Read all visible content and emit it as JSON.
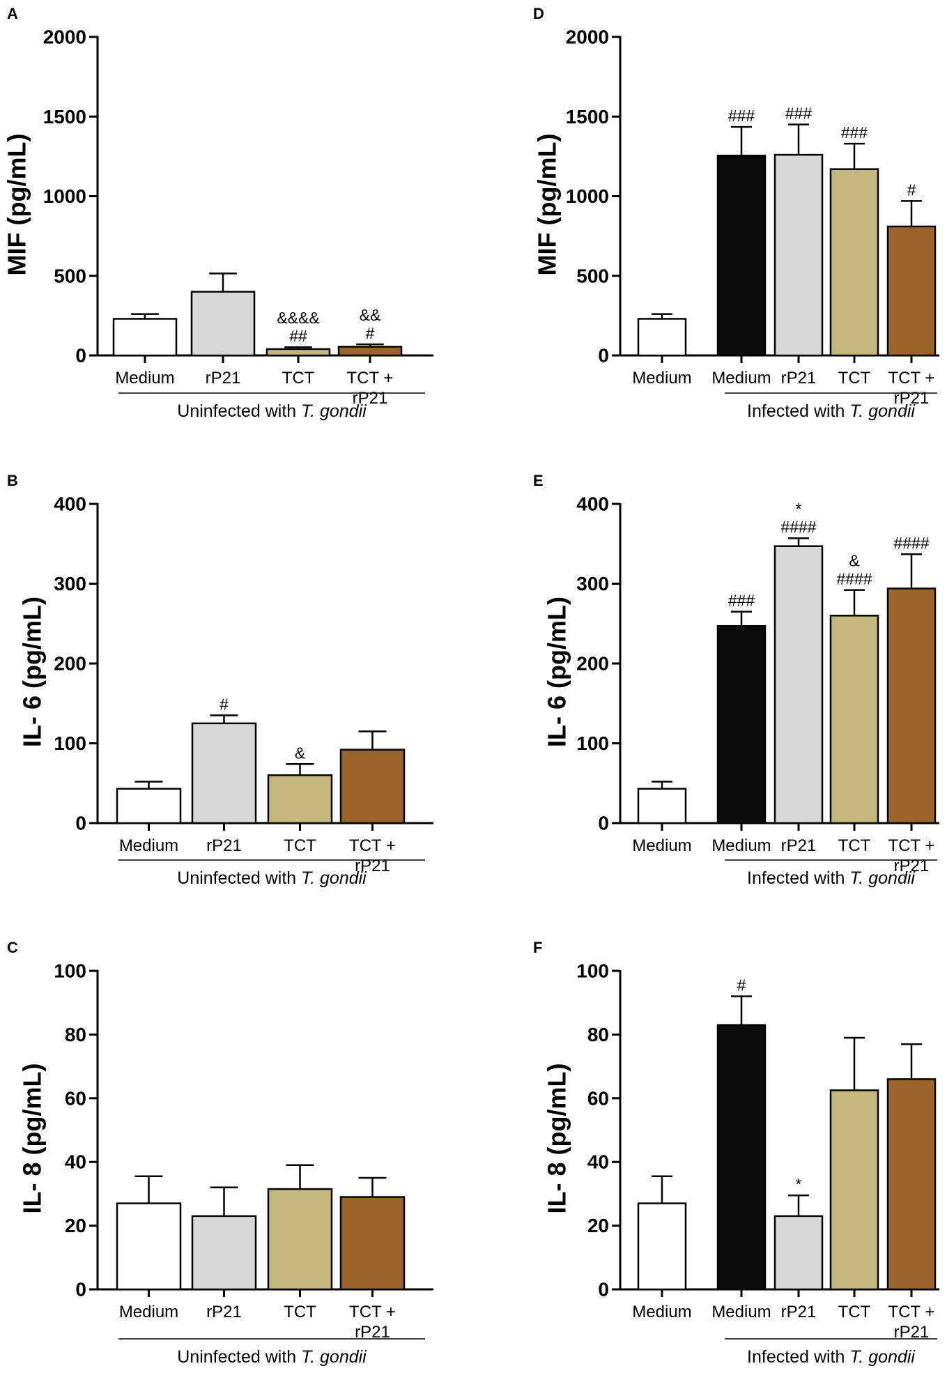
{
  "colors": {
    "white": "#ffffff",
    "grey": "#d7d8d7",
    "tan": "#c4b67f",
    "brown": "#98642c",
    "black": "#0a0a0a",
    "stroke": "#000000"
  },
  "chart_data": [
    {
      "panel": "A",
      "type": "bar",
      "ylabel": "MIF (pg/mL)",
      "ylim": [
        0,
        2000
      ],
      "yticks": [
        0,
        500,
        1000,
        1500,
        2000
      ],
      "group_label": "Uninfected with ",
      "group_label_italic": "T. gondii",
      "bars": [
        {
          "category": "Medium",
          "value": 230,
          "err": 30,
          "color": "white",
          "sig": []
        },
        {
          "category": "rP21",
          "value": 400,
          "err": 115,
          "color": "grey",
          "sig": []
        },
        {
          "category": "TCT",
          "value": 40,
          "err": 12,
          "color": "tan",
          "sig": [
            "&&&&",
            "##"
          ]
        },
        {
          "category": "TCT +",
          "category2": "rP21",
          "value": 55,
          "err": 15,
          "color": "brown",
          "sig": [
            "&&",
            "#"
          ]
        }
      ]
    },
    {
      "panel": "B",
      "type": "bar",
      "ylabel": "IL- 6 (pg/mL)",
      "ylim": [
        0,
        400
      ],
      "yticks": [
        0,
        100,
        200,
        300,
        400
      ],
      "group_label": "Uninfected with ",
      "group_label_italic": "T. gondii",
      "bars": [
        {
          "category": "Medium",
          "value": 43,
          "err": 9,
          "color": "white",
          "sig": []
        },
        {
          "category": "rP21",
          "value": 125,
          "err": 10,
          "color": "grey",
          "sig": [
            "#"
          ]
        },
        {
          "category": "TCT",
          "value": 60,
          "err": 14,
          "color": "tan",
          "sig": [
            "&"
          ]
        },
        {
          "category": "TCT +",
          "category2": "rP21",
          "value": 92,
          "err": 23,
          "color": "brown",
          "sig": []
        }
      ]
    },
    {
      "panel": "C",
      "type": "bar",
      "ylabel": "IL- 8 (pg/mL)",
      "ylim": [
        0,
        100
      ],
      "yticks": [
        0,
        20,
        40,
        60,
        80,
        100
      ],
      "group_label": "Uninfected with ",
      "group_label_italic": "T. gondii",
      "bars": [
        {
          "category": "Medium",
          "value": 27,
          "err": 8.5,
          "color": "white",
          "sig": []
        },
        {
          "category": "rP21",
          "value": 23,
          "err": 9,
          "color": "grey",
          "sig": []
        },
        {
          "category": "TCT",
          "value": 31.5,
          "err": 7.5,
          "color": "tan",
          "sig": []
        },
        {
          "category": "TCT +",
          "category2": "rP21",
          "value": 29,
          "err": 6,
          "color": "brown",
          "sig": []
        }
      ]
    },
    {
      "panel": "D",
      "type": "bar",
      "ylabel": "MIF (pg/mL)",
      "ylim": [
        0,
        2000
      ],
      "yticks": [
        0,
        500,
        1000,
        1500,
        2000
      ],
      "group_label": "Infected with ",
      "group_label_italic": "T. gondii",
      "bars": [
        {
          "category": "Medium",
          "value": 230,
          "err": 30,
          "color": "white",
          "sig": []
        },
        {
          "category": "Medium",
          "value": 1255,
          "err": 180,
          "color": "black",
          "sig": [
            "###"
          ]
        },
        {
          "category": "rP21",
          "value": 1260,
          "err": 190,
          "color": "grey",
          "sig": [
            "###"
          ]
        },
        {
          "category": "TCT",
          "value": 1170,
          "err": 160,
          "color": "tan",
          "sig": [
            "###"
          ]
        },
        {
          "category": "TCT +",
          "category2": "rP21",
          "value": 810,
          "err": 160,
          "color": "brown",
          "sig": [
            "#"
          ]
        }
      ]
    },
    {
      "panel": "E",
      "type": "bar",
      "ylabel": "IL- 6 (pg/mL)",
      "ylim": [
        0,
        400
      ],
      "yticks": [
        0,
        100,
        200,
        300,
        400
      ],
      "group_label": "Infected with ",
      "group_label_italic": "T. gondii",
      "bars": [
        {
          "category": "Medium",
          "value": 43,
          "err": 9,
          "color": "white",
          "sig": []
        },
        {
          "category": "Medium",
          "value": 247,
          "err": 18,
          "color": "black",
          "sig": [
            "###"
          ]
        },
        {
          "category": "rP21",
          "value": 347,
          "err": 10,
          "color": "grey",
          "sig": [
            "*",
            "####"
          ]
        },
        {
          "category": "TCT",
          "value": 260,
          "err": 32,
          "color": "tan",
          "sig": [
            "&",
            "####"
          ]
        },
        {
          "category": "TCT +",
          "category2": "rP21",
          "value": 294,
          "err": 43,
          "color": "brown",
          "sig": [
            "####"
          ]
        }
      ]
    },
    {
      "panel": "F",
      "type": "bar",
      "ylabel": "IL- 8 (pg/mL)",
      "ylim": [
        0,
        100
      ],
      "yticks": [
        0,
        20,
        40,
        60,
        80,
        100
      ],
      "group_label": "Infected with ",
      "group_label_italic": "T. gondii",
      "bars": [
        {
          "category": "Medium",
          "value": 27,
          "err": 8.5,
          "color": "white",
          "sig": []
        },
        {
          "category": "Medium",
          "value": 83,
          "err": 9,
          "color": "black",
          "sig": [
            "#"
          ]
        },
        {
          "category": "rP21",
          "value": 23,
          "err": 6.5,
          "color": "grey",
          "sig": [
            "*"
          ]
        },
        {
          "category": "TCT",
          "value": 62.5,
          "err": 16.5,
          "color": "tan",
          "sig": []
        },
        {
          "category": "TCT +",
          "category2": "rP21",
          "value": 66,
          "err": 11,
          "color": "brown",
          "sig": []
        }
      ]
    }
  ]
}
